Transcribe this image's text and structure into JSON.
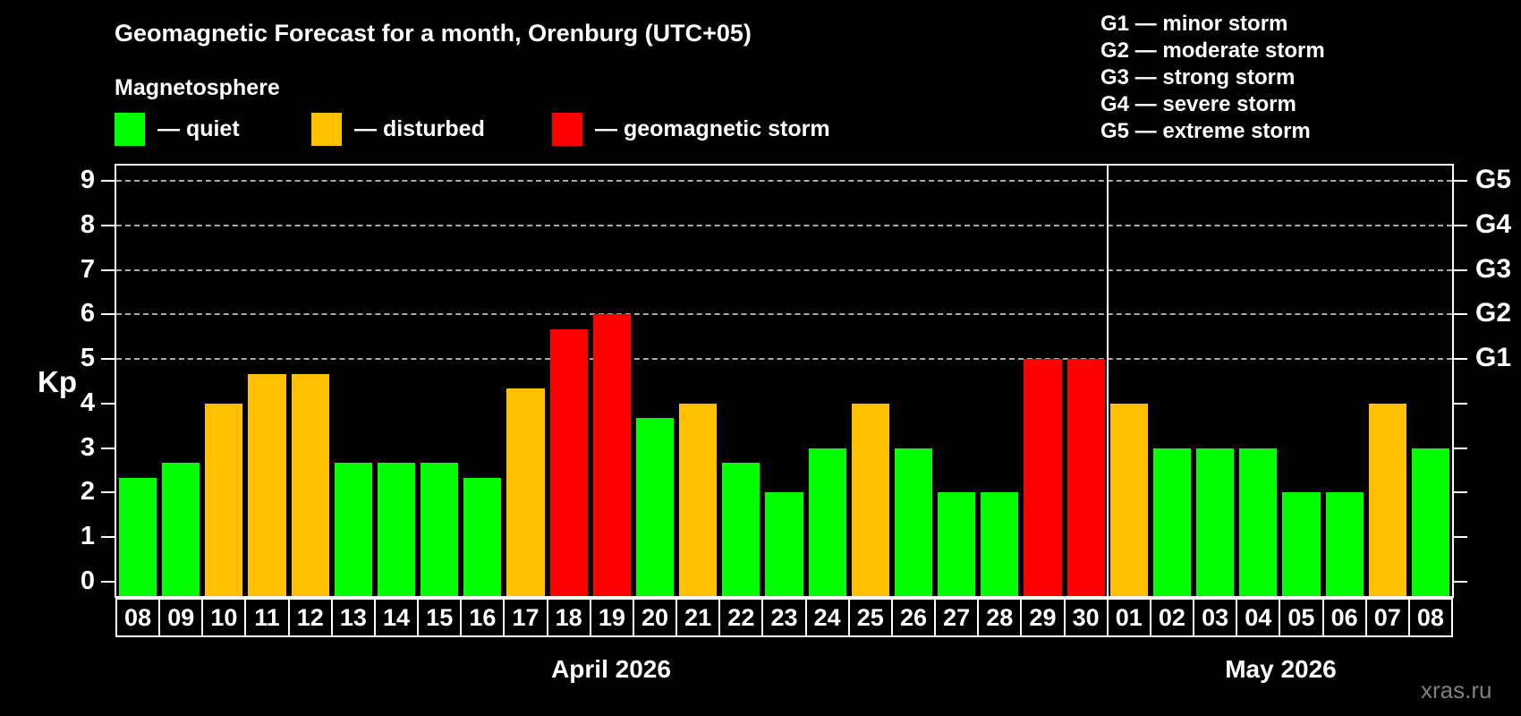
{
  "title": "Geomagnetic Forecast for a month, Orenburg (UTC+05)",
  "subtitle": "Magnetosphere",
  "legend": {
    "items": [
      {
        "key": "quiet",
        "label": "— quiet",
        "color": "#00ff00"
      },
      {
        "key": "disturbed",
        "label": "— disturbed",
        "color": "#ffc000"
      },
      {
        "key": "storm",
        "label": "— geomagnetic storm",
        "color": "#ff0000"
      }
    ]
  },
  "storm_scale_legend": [
    "G1 — minor storm",
    "G2 — moderate storm",
    "G3 — strong storm",
    "G4 — severe storm",
    "G5 — extreme storm"
  ],
  "watermark": "xras.ru",
  "chart_data": {
    "type": "bar",
    "ylabel": "Kp",
    "ylim": [
      0,
      9
    ],
    "yticks": [
      0,
      1,
      2,
      3,
      4,
      5,
      6,
      7,
      8,
      9
    ],
    "gridlines_at": [
      5,
      6,
      7,
      8,
      9
    ],
    "grid": "dashed horizontal at storm levels only",
    "right_axis_labels": [
      {
        "value": 5,
        "label": "G1"
      },
      {
        "value": 6,
        "label": "G2"
      },
      {
        "value": 7,
        "label": "G3"
      },
      {
        "value": 8,
        "label": "G4"
      },
      {
        "value": 9,
        "label": "G5"
      }
    ],
    "colors": {
      "quiet": "#00ff00",
      "disturbed": "#ffc000",
      "storm": "#ff0000"
    },
    "months": [
      {
        "label": "April 2026",
        "bar_count": 23
      },
      {
        "label": "May 2026",
        "bar_count": 8
      }
    ],
    "month_divider_after_index": 22,
    "bars": [
      {
        "date": "08",
        "month": "April 2026",
        "kp": 2.33,
        "level": "quiet"
      },
      {
        "date": "09",
        "month": "April 2026",
        "kp": 2.67,
        "level": "quiet"
      },
      {
        "date": "10",
        "month": "April 2026",
        "kp": 4.0,
        "level": "disturbed"
      },
      {
        "date": "11",
        "month": "April 2026",
        "kp": 4.67,
        "level": "disturbed"
      },
      {
        "date": "12",
        "month": "April 2026",
        "kp": 4.67,
        "level": "disturbed"
      },
      {
        "date": "13",
        "month": "April 2026",
        "kp": 2.67,
        "level": "quiet"
      },
      {
        "date": "14",
        "month": "April 2026",
        "kp": 2.67,
        "level": "quiet"
      },
      {
        "date": "15",
        "month": "April 2026",
        "kp": 2.67,
        "level": "quiet"
      },
      {
        "date": "16",
        "month": "April 2026",
        "kp": 2.33,
        "level": "quiet"
      },
      {
        "date": "17",
        "month": "April 2026",
        "kp": 4.33,
        "level": "disturbed"
      },
      {
        "date": "18",
        "month": "April 2026",
        "kp": 5.67,
        "level": "storm"
      },
      {
        "date": "19",
        "month": "April 2026",
        "kp": 6.0,
        "level": "storm"
      },
      {
        "date": "20",
        "month": "April 2026",
        "kp": 3.67,
        "level": "quiet"
      },
      {
        "date": "21",
        "month": "April 2026",
        "kp": 4.0,
        "level": "disturbed"
      },
      {
        "date": "22",
        "month": "April 2026",
        "kp": 2.67,
        "level": "quiet"
      },
      {
        "date": "23",
        "month": "April 2026",
        "kp": 2.0,
        "level": "quiet"
      },
      {
        "date": "24",
        "month": "April 2026",
        "kp": 3.0,
        "level": "quiet"
      },
      {
        "date": "25",
        "month": "April 2026",
        "kp": 4.0,
        "level": "disturbed"
      },
      {
        "date": "26",
        "month": "April 2026",
        "kp": 3.0,
        "level": "quiet"
      },
      {
        "date": "27",
        "month": "April 2026",
        "kp": 2.0,
        "level": "quiet"
      },
      {
        "date": "28",
        "month": "April 2026",
        "kp": 2.0,
        "level": "quiet"
      },
      {
        "date": "29",
        "month": "April 2026",
        "kp": 5.0,
        "level": "storm"
      },
      {
        "date": "30",
        "month": "April 2026",
        "kp": 5.0,
        "level": "storm"
      },
      {
        "date": "01",
        "month": "May 2026",
        "kp": 4.0,
        "level": "disturbed"
      },
      {
        "date": "02",
        "month": "May 2026",
        "kp": 3.0,
        "level": "quiet"
      },
      {
        "date": "03",
        "month": "May 2026",
        "kp": 3.0,
        "level": "quiet"
      },
      {
        "date": "04",
        "month": "May 2026",
        "kp": 3.0,
        "level": "quiet"
      },
      {
        "date": "05",
        "month": "May 2026",
        "kp": 2.0,
        "level": "quiet"
      },
      {
        "date": "06",
        "month": "May 2026",
        "kp": 2.0,
        "level": "quiet"
      },
      {
        "date": "07",
        "month": "May 2026",
        "kp": 4.0,
        "level": "disturbed"
      },
      {
        "date": "08",
        "month": "May 2026",
        "kp": 3.0,
        "level": "quiet"
      }
    ]
  }
}
